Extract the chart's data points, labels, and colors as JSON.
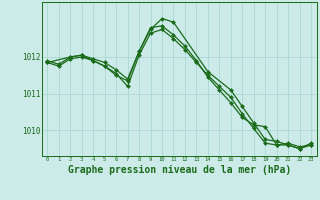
{
  "background_color": "#cceae7",
  "grid_color": "#aad8d5",
  "line_color": "#1a6b1a",
  "marker_color": "#1a6b1a",
  "xlabel": "Graphe pression niveau de la mer (hPa)",
  "xlabel_fontsize": 7,
  "yticks": [
    1010,
    1011,
    1012
  ],
  "xticks": [
    0,
    1,
    2,
    3,
    4,
    5,
    6,
    7,
    8,
    9,
    10,
    11,
    12,
    13,
    14,
    15,
    16,
    17,
    18,
    19,
    20,
    21,
    22,
    23
  ],
  "xlim": [
    -0.5,
    23.5
  ],
  "ylim": [
    1009.3,
    1013.5
  ],
  "series": [
    {
      "x": [
        0,
        1,
        2,
        3,
        4,
        5,
        6,
        7,
        8,
        9,
        10,
        11,
        12,
        13,
        14,
        15,
        16,
        17,
        18,
        19,
        20,
        21,
        22,
        23
      ],
      "y": [
        1011.85,
        1011.75,
        1011.95,
        1012.0,
        1011.9,
        1011.75,
        1011.55,
        1011.2,
        1012.05,
        1012.65,
        1012.75,
        1012.5,
        1012.2,
        1011.85,
        1011.5,
        1011.2,
        1010.9,
        1010.45,
        1010.05,
        1009.65,
        1009.6,
        1009.6,
        1009.5,
        1009.6
      ],
      "marker": "D",
      "markersize": 2.0,
      "linewidth": 0.9
    },
    {
      "x": [
        0,
        1,
        2,
        3,
        4,
        5,
        6,
        7,
        8,
        9,
        10,
        11,
        12,
        13,
        14,
        15,
        16,
        17,
        18,
        19,
        20,
        21,
        22,
        23
      ],
      "y": [
        1011.9,
        1011.8,
        1012.0,
        1012.05,
        1011.95,
        1011.85,
        1011.65,
        1011.4,
        1012.15,
        1012.8,
        1012.85,
        1012.6,
        1012.3,
        1011.9,
        1011.45,
        1011.1,
        1010.75,
        1010.35,
        1010.15,
        1010.1,
        1009.6,
        1009.65,
        1009.55,
        1009.6
      ],
      "marker": "D",
      "markersize": 2.0,
      "linewidth": 0.9
    },
    {
      "x": [
        0,
        2,
        3,
        4,
        5,
        6,
        7,
        8,
        9,
        10,
        11,
        14,
        16,
        17,
        18,
        19,
        20,
        21,
        22,
        23
      ],
      "y": [
        1011.85,
        1012.0,
        1012.05,
        1011.9,
        1011.75,
        1011.5,
        1011.35,
        1012.15,
        1012.75,
        1013.05,
        1012.95,
        1011.6,
        1011.1,
        1010.65,
        1010.2,
        1009.75,
        1009.7,
        1009.6,
        1009.5,
        1009.65
      ],
      "marker": "D",
      "markersize": 2.0,
      "linewidth": 0.9
    }
  ]
}
